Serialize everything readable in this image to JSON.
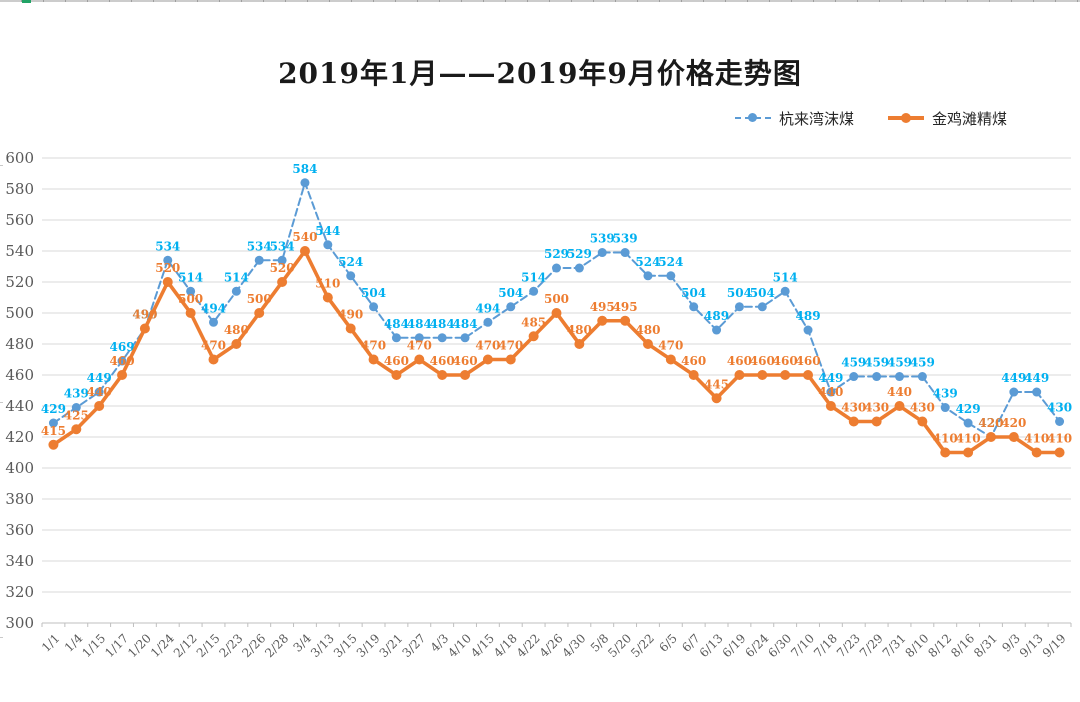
{
  "title": "2019年1月——2019年9月价格走势图",
  "legend": {
    "items": [
      {
        "label": "杭来湾沫煤",
        "color": "#5B9BD5",
        "marker": "dashed-line-dot"
      },
      {
        "label": "金鸡滩精煤",
        "color": "#ED7D31",
        "marker": "solid-line-dot"
      }
    ]
  },
  "axis_style": {
    "tick_label_color": "#595959",
    "grid_color": "#D9D9D9",
    "axis_line_color": "#BFBFBF"
  },
  "chart_data": {
    "type": "line",
    "title": "2019年1月——2019年9月价格走势图",
    "categories": [
      "1/1",
      "1/4",
      "1/15",
      "1/17",
      "1/20",
      "1/24",
      "2/12",
      "2/15",
      "2/23",
      "2/26",
      "2/28",
      "3/4",
      "3/13",
      "3/15",
      "3/19",
      "3/21",
      "3/27",
      "4/3",
      "4/10",
      "4/15",
      "4/18",
      "4/22",
      "4/26",
      "4/30",
      "5/8",
      "5/20",
      "5/22",
      "6/5",
      "6/7",
      "6/13",
      "6/19",
      "6/24",
      "6/30",
      "7/10",
      "7/18",
      "7/23",
      "7/29",
      "7/31",
      "8/10",
      "8/12",
      "8/16",
      "8/31",
      "9/3",
      "9/13",
      "9/19"
    ],
    "series": [
      {
        "name": "杭来湾沫煤",
        "style": "dashed",
        "color": "#5B9BD5",
        "label_color": "#00B0F0",
        "values": [
          429,
          439,
          449,
          469,
          490,
          534,
          514,
          494,
          514,
          534,
          534,
          584,
          544,
          524,
          504,
          484,
          484,
          484,
          484,
          494,
          504,
          514,
          529,
          529,
          539,
          539,
          524,
          524,
          504,
          489,
          504,
          504,
          514,
          489,
          449,
          459,
          459,
          459,
          459,
          439,
          429,
          420,
          449,
          449,
          430
        ]
      },
      {
        "name": "金鸡滩精煤",
        "style": "solid",
        "color": "#ED7D31",
        "label_color": "#ED7D31",
        "values": [
          415,
          425,
          440,
          460,
          490,
          520,
          500,
          470,
          480,
          500,
          520,
          540,
          510,
          490,
          470,
          460,
          470,
          460,
          460,
          470,
          470,
          485,
          500,
          480,
          495,
          495,
          480,
          470,
          460,
          445,
          460,
          460,
          460,
          460,
          440,
          430,
          430,
          440,
          430,
          410,
          410,
          420,
          420,
          410,
          410
        ]
      }
    ],
    "ylim": [
      300,
      600
    ],
    "y_ticks": [
      300,
      320,
      340,
      360,
      380,
      400,
      420,
      440,
      460,
      480,
      500,
      520,
      540,
      560,
      580,
      600
    ],
    "grid": true,
    "data_labels": true,
    "legend_position": "top-right"
  }
}
